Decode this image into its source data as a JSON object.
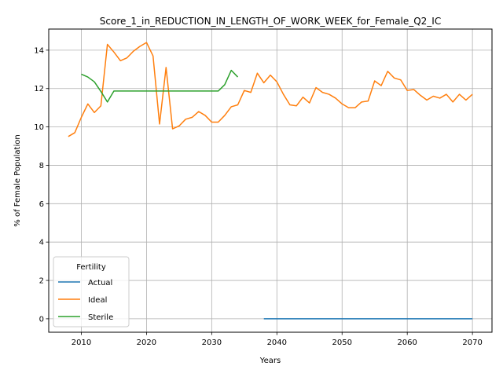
{
  "chart_data": {
    "type": "line",
    "title": "Score_1_in_REDUCTION_IN_LENGTH_OF_WORK_WEEK_for_Female_Q2_IC",
    "xlabel": "Years",
    "ylabel": "% of Female Population",
    "xlim": [
      2005,
      2073
    ],
    "ylim": [
      -0.7,
      15.1
    ],
    "x_ticks": [
      2010,
      2020,
      2030,
      2040,
      2050,
      2060,
      2070
    ],
    "y_ticks": [
      0,
      2,
      4,
      6,
      8,
      10,
      12,
      14
    ],
    "grid": true,
    "legend": {
      "title": "Fertility",
      "placement": "lower-left"
    },
    "series": [
      {
        "name": "Actual",
        "color": "#1f77b4",
        "x": [
          2038,
          2040,
          2045,
          2050,
          2055,
          2060,
          2065,
          2070
        ],
        "y": [
          0,
          0,
          0,
          0,
          0,
          0,
          0,
          0
        ]
      },
      {
        "name": "Ideal",
        "color": "#ff7f0e",
        "x": [
          2008,
          2009,
          2010,
          2011,
          2012,
          2013,
          2014,
          2015,
          2016,
          2017,
          2018,
          2019,
          2020,
          2021,
          2022,
          2023,
          2024,
          2025,
          2026,
          2027,
          2028,
          2029,
          2030,
          2031,
          2032,
          2033,
          2034,
          2035,
          2036,
          2037,
          2038,
          2039,
          2040,
          2041,
          2042,
          2043,
          2044,
          2045,
          2046,
          2047,
          2048,
          2049,
          2050,
          2051,
          2052,
          2053,
          2054,
          2055,
          2056,
          2057,
          2058,
          2059,
          2060,
          2061,
          2062,
          2063,
          2064,
          2065,
          2066,
          2067,
          2068,
          2069,
          2070
        ],
        "y": [
          9.5,
          9.7,
          10.5,
          11.2,
          10.75,
          11.1,
          14.3,
          13.9,
          13.45,
          13.6,
          13.95,
          14.2,
          14.4,
          13.7,
          10.15,
          13.1,
          9.9,
          10.05,
          10.4,
          10.5,
          10.8,
          10.6,
          10.25,
          10.25,
          10.6,
          11.05,
          11.15,
          11.9,
          11.8,
          12.8,
          12.3,
          12.7,
          12.35,
          11.7,
          11.15,
          11.1,
          11.55,
          11.25,
          12.05,
          11.8,
          11.7,
          11.5,
          11.2,
          11.0,
          11.0,
          11.3,
          11.35,
          12.4,
          12.15,
          12.9,
          12.55,
          12.45,
          11.9,
          11.95,
          11.65,
          11.4,
          11.6,
          11.5,
          11.7,
          11.3,
          11.7,
          11.4,
          11.7
        ]
      },
      {
        "name": "Sterile",
        "color": "#2ca02c",
        "x": [
          2010,
          2011,
          2012,
          2013,
          2014,
          2015,
          2016,
          2017,
          2018,
          2019,
          2020,
          2021,
          2022,
          2023,
          2024,
          2025,
          2026,
          2027,
          2028,
          2029,
          2030,
          2031,
          2032,
          2033,
          2034
        ],
        "y": [
          12.75,
          12.6,
          12.35,
          11.85,
          11.3,
          11.87,
          11.87,
          11.87,
          11.87,
          11.87,
          11.87,
          11.87,
          11.87,
          11.87,
          11.87,
          11.87,
          11.87,
          11.87,
          11.87,
          11.87,
          11.87,
          11.87,
          12.2,
          12.95,
          12.6
        ]
      }
    ]
  }
}
